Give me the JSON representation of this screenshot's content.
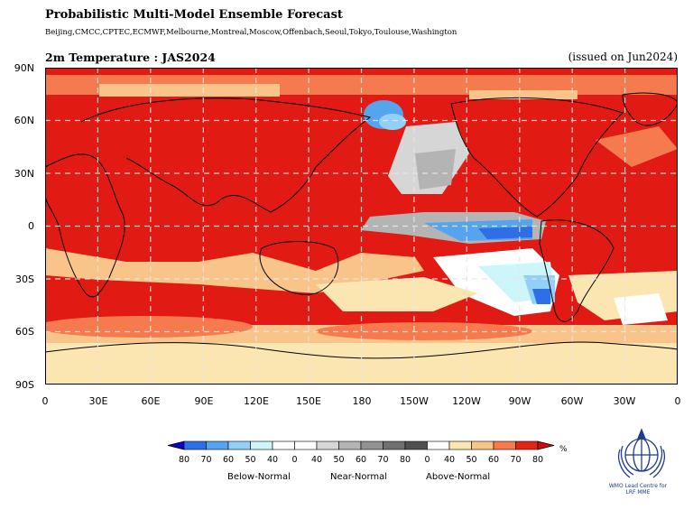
{
  "header": {
    "title": "Probabilistic Multi-Model Ensemble Forecast",
    "models": "Beijing,CMCC,CPTEC,ECMWF,Melbourne,Montreal,Moscow,Offenbach,Seoul,Tokyo,Toulouse,Washington",
    "variable": "2m Temperature : JAS2024",
    "issued": "(issued on Jun2024)"
  },
  "map": {
    "y_ticks": [
      "90N",
      "60N",
      "30N",
      "0",
      "30S",
      "60S",
      "90S"
    ],
    "x_ticks": [
      "0",
      "30E",
      "60E",
      "90E",
      "120E",
      "150E",
      "180",
      "150W",
      "120W",
      "90W",
      "60W",
      "30W",
      "0"
    ],
    "projection": "equirectangular, central longitude 180",
    "gridlines": true
  },
  "legend": {
    "unit": "%",
    "tick_labels": [
      "80",
      "70",
      "60",
      "50",
      "40",
      "0",
      "40",
      "50",
      "60",
      "70",
      "80",
      "0",
      "40",
      "50",
      "60",
      "70",
      "80"
    ],
    "categories": [
      "Below-Normal",
      "Near-Normal",
      "Above-Normal"
    ],
    "colors": {
      "below": [
        "#0a00c8",
        "#2f6fe6",
        "#57a4ee",
        "#92d0f7",
        "#cdf6fb",
        "#ffffff"
      ],
      "near": [
        "#ffffff",
        "#d6d6d6",
        "#b4b4b4",
        "#929292",
        "#707070",
        "#505050"
      ],
      "above": [
        "#ffffff",
        "#fbe6b2",
        "#f8c48a",
        "#f57a4e",
        "#e32419",
        "#d20a0a"
      ]
    }
  },
  "logo": {
    "org": "WMO Lead Centre for",
    "sub": "LRF MME"
  }
}
